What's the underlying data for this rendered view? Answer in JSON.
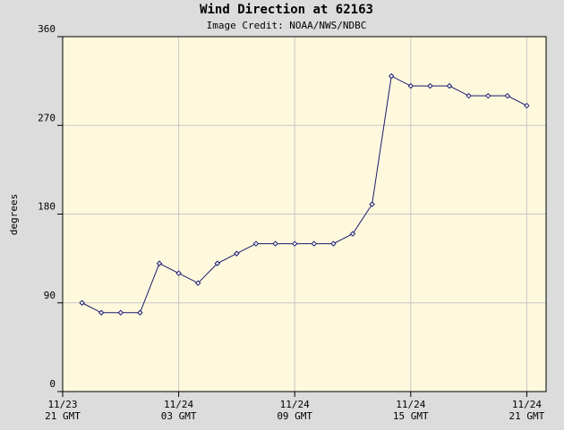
{
  "chart_data": {
    "type": "line",
    "title": "Wind Direction at 62163",
    "subtitle": "Image Credit: NOAA/NWS/NDBC",
    "y_label": "degrees",
    "x": [
      1,
      2,
      3,
      4,
      5,
      6,
      7,
      8,
      9,
      10,
      11,
      12,
      13,
      14,
      15,
      16,
      17,
      18,
      19,
      20,
      21,
      22,
      23,
      24
    ],
    "series": [
      {
        "color": "#1a1a6e",
        "values": [
          90,
          80,
          80,
          80,
          130,
          120,
          110,
          130,
          140,
          150,
          150,
          150,
          150,
          150,
          160,
          190,
          320,
          310,
          310,
          310,
          300,
          300,
          300,
          290
        ]
      }
    ],
    "xlim": [
      0,
      25
    ],
    "xticks": [
      {
        "value": 0,
        "label": "11/23\n21 GMT"
      },
      {
        "value": 6,
        "label": "11/24\n03 GMT"
      },
      {
        "value": 12,
        "label": "11/24\n09 GMT"
      },
      {
        "value": 18,
        "label": "11/24\n15 GMT"
      },
      {
        "value": 24,
        "label": "11/24\n21 GMT"
      }
    ],
    "ylim": [
      0,
      360
    ],
    "yticks": [
      0,
      90,
      180,
      270,
      360
    ],
    "grid": true
  }
}
